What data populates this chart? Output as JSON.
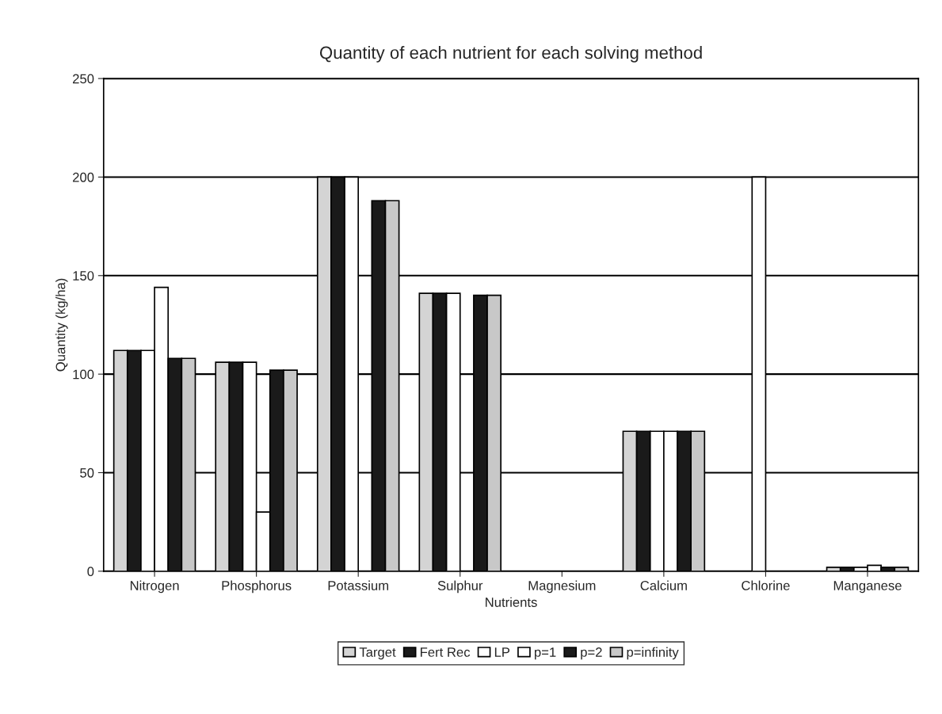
{
  "chart_data": {
    "type": "bar",
    "title": "Quantity of each nutrient for each solving method",
    "xlabel": "Nutrients",
    "ylabel": "Quantity (kg/ha)",
    "categories": [
      "Nitrogen",
      "Phosphorus",
      "Potassium",
      "Sulphur",
      "Magnesium",
      "Calcium",
      "Chlorine",
      "Manganese"
    ],
    "series": [
      {
        "name": "Target",
        "color": "#d4d4d4",
        "values": [
          112,
          106,
          200,
          141,
          0,
          71,
          0,
          2
        ]
      },
      {
        "name": "Fert Rec",
        "color": "#1a1a1a",
        "values": [
          112,
          106,
          200,
          141,
          0,
          71,
          0,
          2
        ]
      },
      {
        "name": "LP",
        "color": "#ffffff",
        "values": [
          112,
          106,
          200,
          141,
          0,
          71,
          200,
          2
        ]
      },
      {
        "name": "p=1",
        "color": "#ffffff",
        "values": [
          144,
          30,
          0,
          0,
          0,
          71,
          0,
          3
        ]
      },
      {
        "name": "p=2",
        "color": "#1a1a1a",
        "values": [
          108,
          102,
          188,
          140,
          0,
          71,
          0,
          2
        ]
      },
      {
        "name": "p=infinity",
        "color": "#c8c8c8",
        "values": [
          108,
          102,
          188,
          140,
          0,
          71,
          0,
          2
        ]
      }
    ],
    "ylim": [
      0,
      250
    ],
    "yticks": [
      0,
      50,
      100,
      150,
      200,
      250
    ],
    "grid": "y",
    "legend": "bottom"
  }
}
